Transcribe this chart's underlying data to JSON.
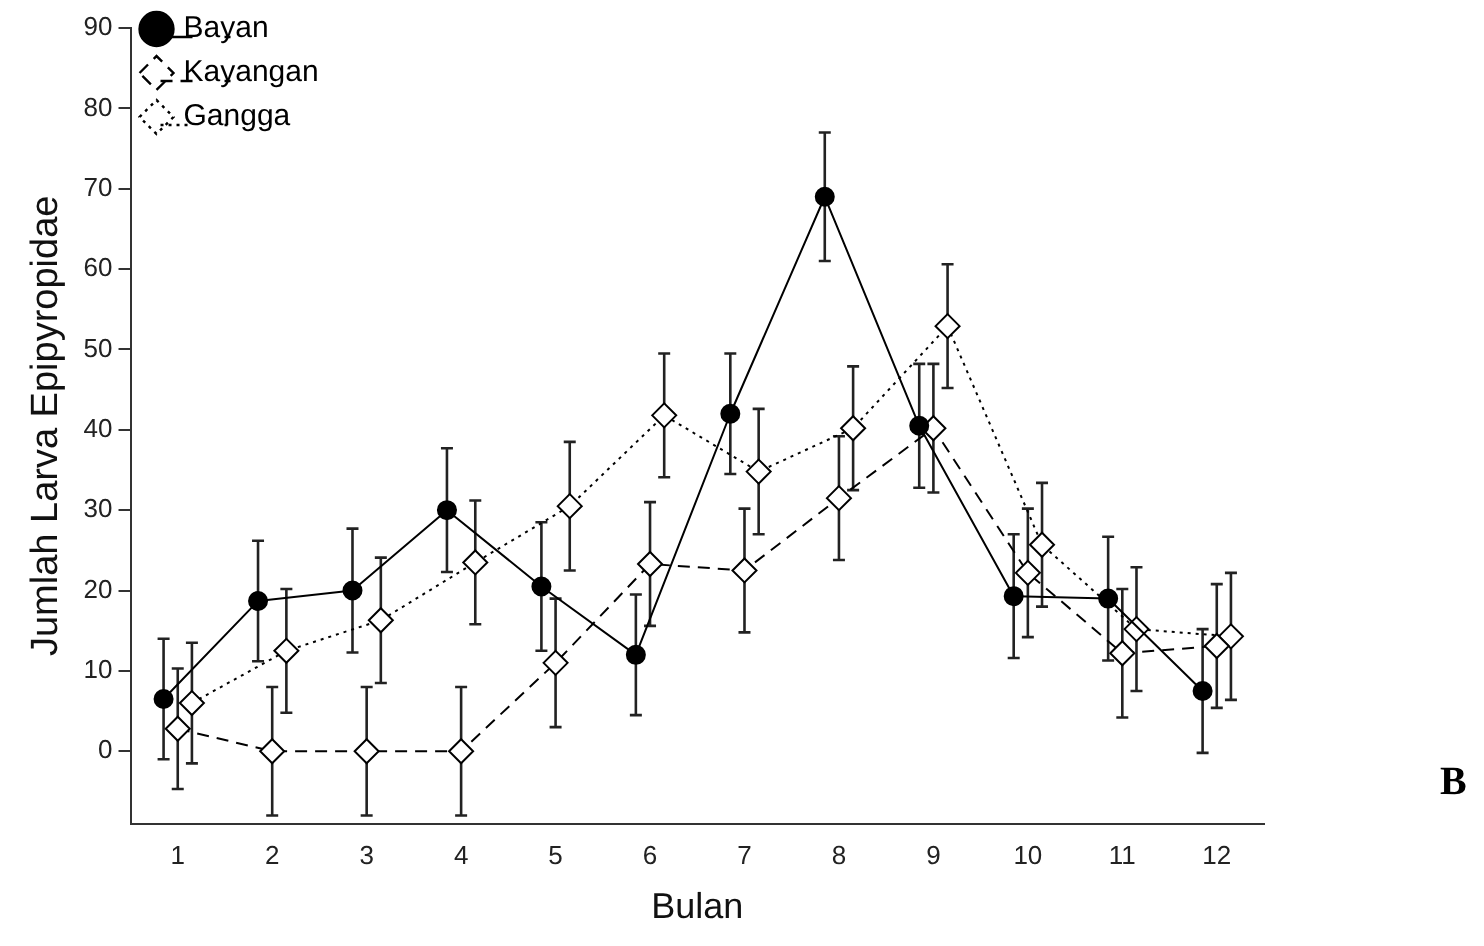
{
  "chart_data": {
    "type": "line",
    "xlabel": "Bulan",
    "ylabel": "Jumlah Larva Epipyropidae",
    "xlim": [
      0.5,
      12.5
    ],
    "xticks": [
      1,
      2,
      3,
      4,
      5,
      6,
      7,
      8,
      9,
      10,
      11,
      12
    ],
    "ylim": [
      -9,
      90
    ],
    "yticks": [
      0,
      10,
      20,
      30,
      40,
      50,
      60,
      70,
      80,
      90
    ],
    "grid": false,
    "legend": "top left",
    "annotations": [
      "B"
    ],
    "series": [
      {
        "name": "Bayan",
        "color": "#000000",
        "marker": "circle",
        "line_style": "solid",
        "x": [
          0.85,
          1.85,
          2.85,
          3.85,
          4.85,
          5.85,
          6.85,
          7.85,
          8.85,
          9.85,
          10.85,
          11.85
        ],
        "values": [
          6.5,
          18.7,
          20,
          30,
          20.5,
          12,
          42,
          69,
          40.5,
          19.3,
          19,
          7.5
        ],
        "errors": [
          7.5,
          7.5,
          7.7,
          7.7,
          8,
          7.5,
          7.5,
          8,
          7.7,
          7.7,
          7.7,
          7.7
        ]
      },
      {
        "name": "Kayangan",
        "color": "#000000",
        "marker": "diamond",
        "line_style": "dashed",
        "x": [
          1,
          2,
          3,
          4,
          5,
          6,
          7,
          8,
          9,
          10,
          11,
          12
        ],
        "values": [
          2.8,
          0,
          0,
          0,
          11,
          23.3,
          22.5,
          31.5,
          40.2,
          22.2,
          12.2,
          13.1
        ],
        "errors": [
          7.5,
          8,
          8,
          8,
          8,
          7.7,
          7.7,
          7.7,
          8,
          8,
          8,
          7.7
        ]
      },
      {
        "name": "Gangga",
        "color": "#000000",
        "marker": "diamond",
        "line_style": "dotted",
        "x": [
          1.15,
          2.15,
          3.15,
          4.15,
          5.15,
          6.15,
          7.15,
          8.15,
          9.15,
          10.15,
          11.15,
          12.15
        ],
        "values": [
          6,
          12.5,
          16.3,
          23.5,
          30.5,
          41.8,
          34.8,
          40.2,
          52.9,
          25.7,
          15.2,
          14.3
        ],
        "errors": [
          7.5,
          7.7,
          7.8,
          7.7,
          8,
          7.7,
          7.8,
          7.7,
          7.7,
          7.7,
          7.7,
          7.9
        ]
      }
    ]
  }
}
